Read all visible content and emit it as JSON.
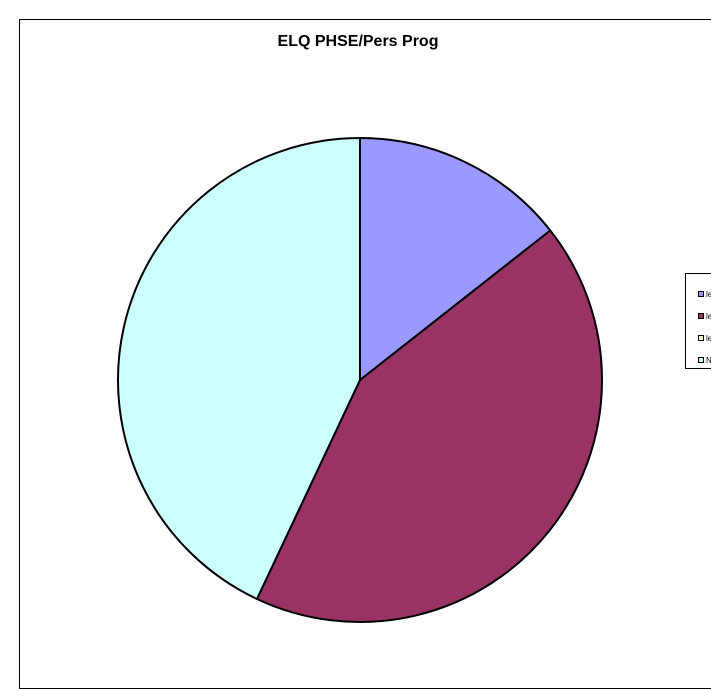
{
  "chart_data": {
    "type": "pie",
    "title": "ELQ PHSE/Pers Prog",
    "categories": [
      "le",
      "le",
      "le",
      "N"
    ],
    "values": [
      14.4,
      42.6,
      0,
      43.0
    ],
    "colors": [
      "#9999FF",
      "#993366",
      "#FFFFCC",
      "#CCFFFF"
    ],
    "start_angle_deg": 0,
    "direction": "clockwise",
    "legend_position": "right"
  }
}
